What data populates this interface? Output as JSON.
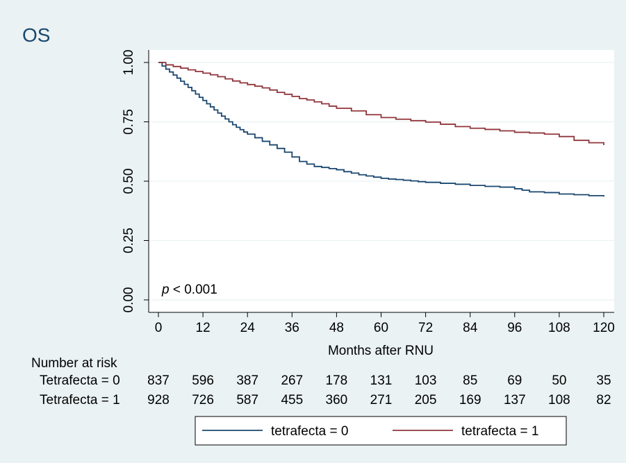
{
  "chart_data": {
    "type": "line",
    "title": "OS",
    "xlabel": "Months after RNU",
    "ylabel": "",
    "xlim": [
      0,
      120
    ],
    "ylim": [
      0,
      1
    ],
    "x_ticks": [
      0,
      12,
      24,
      36,
      48,
      60,
      72,
      84,
      96,
      108,
      120
    ],
    "x_tick_labels": [
      "0",
      "12",
      "24",
      "36",
      "48",
      "60",
      "72",
      "84",
      "96",
      "108",
      "120"
    ],
    "y_ticks": [
      0,
      0.25,
      0.5,
      0.75,
      1
    ],
    "y_tick_labels": [
      "0.00",
      "0.25",
      "0.50",
      "0.75",
      "1.00"
    ],
    "grid": true,
    "legend_position": "bottom",
    "annotation": {
      "p_symbol": "p",
      "p_rest": " < 0.001"
    },
    "series": [
      {
        "name": "tetrafecta = 0",
        "color": "#1a476f",
        "x": [
          0,
          1,
          2,
          3,
          4,
          5,
          6,
          7,
          8,
          9,
          10,
          11,
          12,
          13,
          14,
          15,
          16,
          17,
          18,
          19,
          20,
          21,
          22,
          23,
          24,
          26,
          28,
          30,
          32,
          34,
          36,
          38,
          40,
          42,
          44,
          46,
          48,
          50,
          52,
          54,
          56,
          58,
          60,
          62,
          64,
          66,
          68,
          70,
          72,
          76,
          80,
          84,
          88,
          92,
          96,
          98,
          100,
          104,
          108,
          112,
          116,
          120
        ],
        "y": [
          1.0,
          0.985,
          0.972,
          0.96,
          0.947,
          0.934,
          0.921,
          0.908,
          0.895,
          0.881,
          0.867,
          0.853,
          0.84,
          0.826,
          0.813,
          0.8,
          0.787,
          0.774,
          0.762,
          0.75,
          0.738,
          0.727,
          0.717,
          0.707,
          0.698,
          0.683,
          0.668,
          0.653,
          0.638,
          0.622,
          0.602,
          0.583,
          0.572,
          0.562,
          0.558,
          0.553,
          0.548,
          0.54,
          0.534,
          0.527,
          0.522,
          0.517,
          0.512,
          0.509,
          0.507,
          0.504,
          0.501,
          0.498,
          0.495,
          0.491,
          0.487,
          0.482,
          0.478,
          0.475,
          0.468,
          0.462,
          0.455,
          0.452,
          0.446,
          0.443,
          0.439,
          0.435
        ]
      },
      {
        "name": "tetrafecta = 1",
        "color": "#90353b",
        "x": [
          0,
          2,
          4,
          6,
          8,
          10,
          12,
          14,
          16,
          18,
          20,
          22,
          24,
          26,
          28,
          30,
          32,
          34,
          36,
          38,
          40,
          42,
          44,
          46,
          48,
          52,
          56,
          60,
          64,
          68,
          72,
          76,
          80,
          84,
          88,
          92,
          96,
          100,
          104,
          108,
          112,
          116,
          120
        ],
        "y": [
          1.0,
          0.99,
          0.983,
          0.976,
          0.969,
          0.962,
          0.955,
          0.948,
          0.94,
          0.931,
          0.922,
          0.914,
          0.907,
          0.9,
          0.893,
          0.884,
          0.874,
          0.866,
          0.857,
          0.848,
          0.842,
          0.834,
          0.826,
          0.816,
          0.807,
          0.796,
          0.78,
          0.768,
          0.761,
          0.755,
          0.749,
          0.74,
          0.73,
          0.723,
          0.718,
          0.712,
          0.706,
          0.703,
          0.698,
          0.688,
          0.672,
          0.662,
          0.652
        ]
      }
    ],
    "risk_table": {
      "heading": "Number at risk",
      "rows": [
        {
          "label": "Tetrafecta = 0",
          "values": [
            837,
            596,
            387,
            267,
            178,
            131,
            103,
            85,
            69,
            50,
            35
          ]
        },
        {
          "label": "Tetrafecta = 1",
          "values": [
            928,
            726,
            587,
            455,
            360,
            271,
            205,
            169,
            137,
            108,
            82
          ]
        }
      ]
    }
  }
}
